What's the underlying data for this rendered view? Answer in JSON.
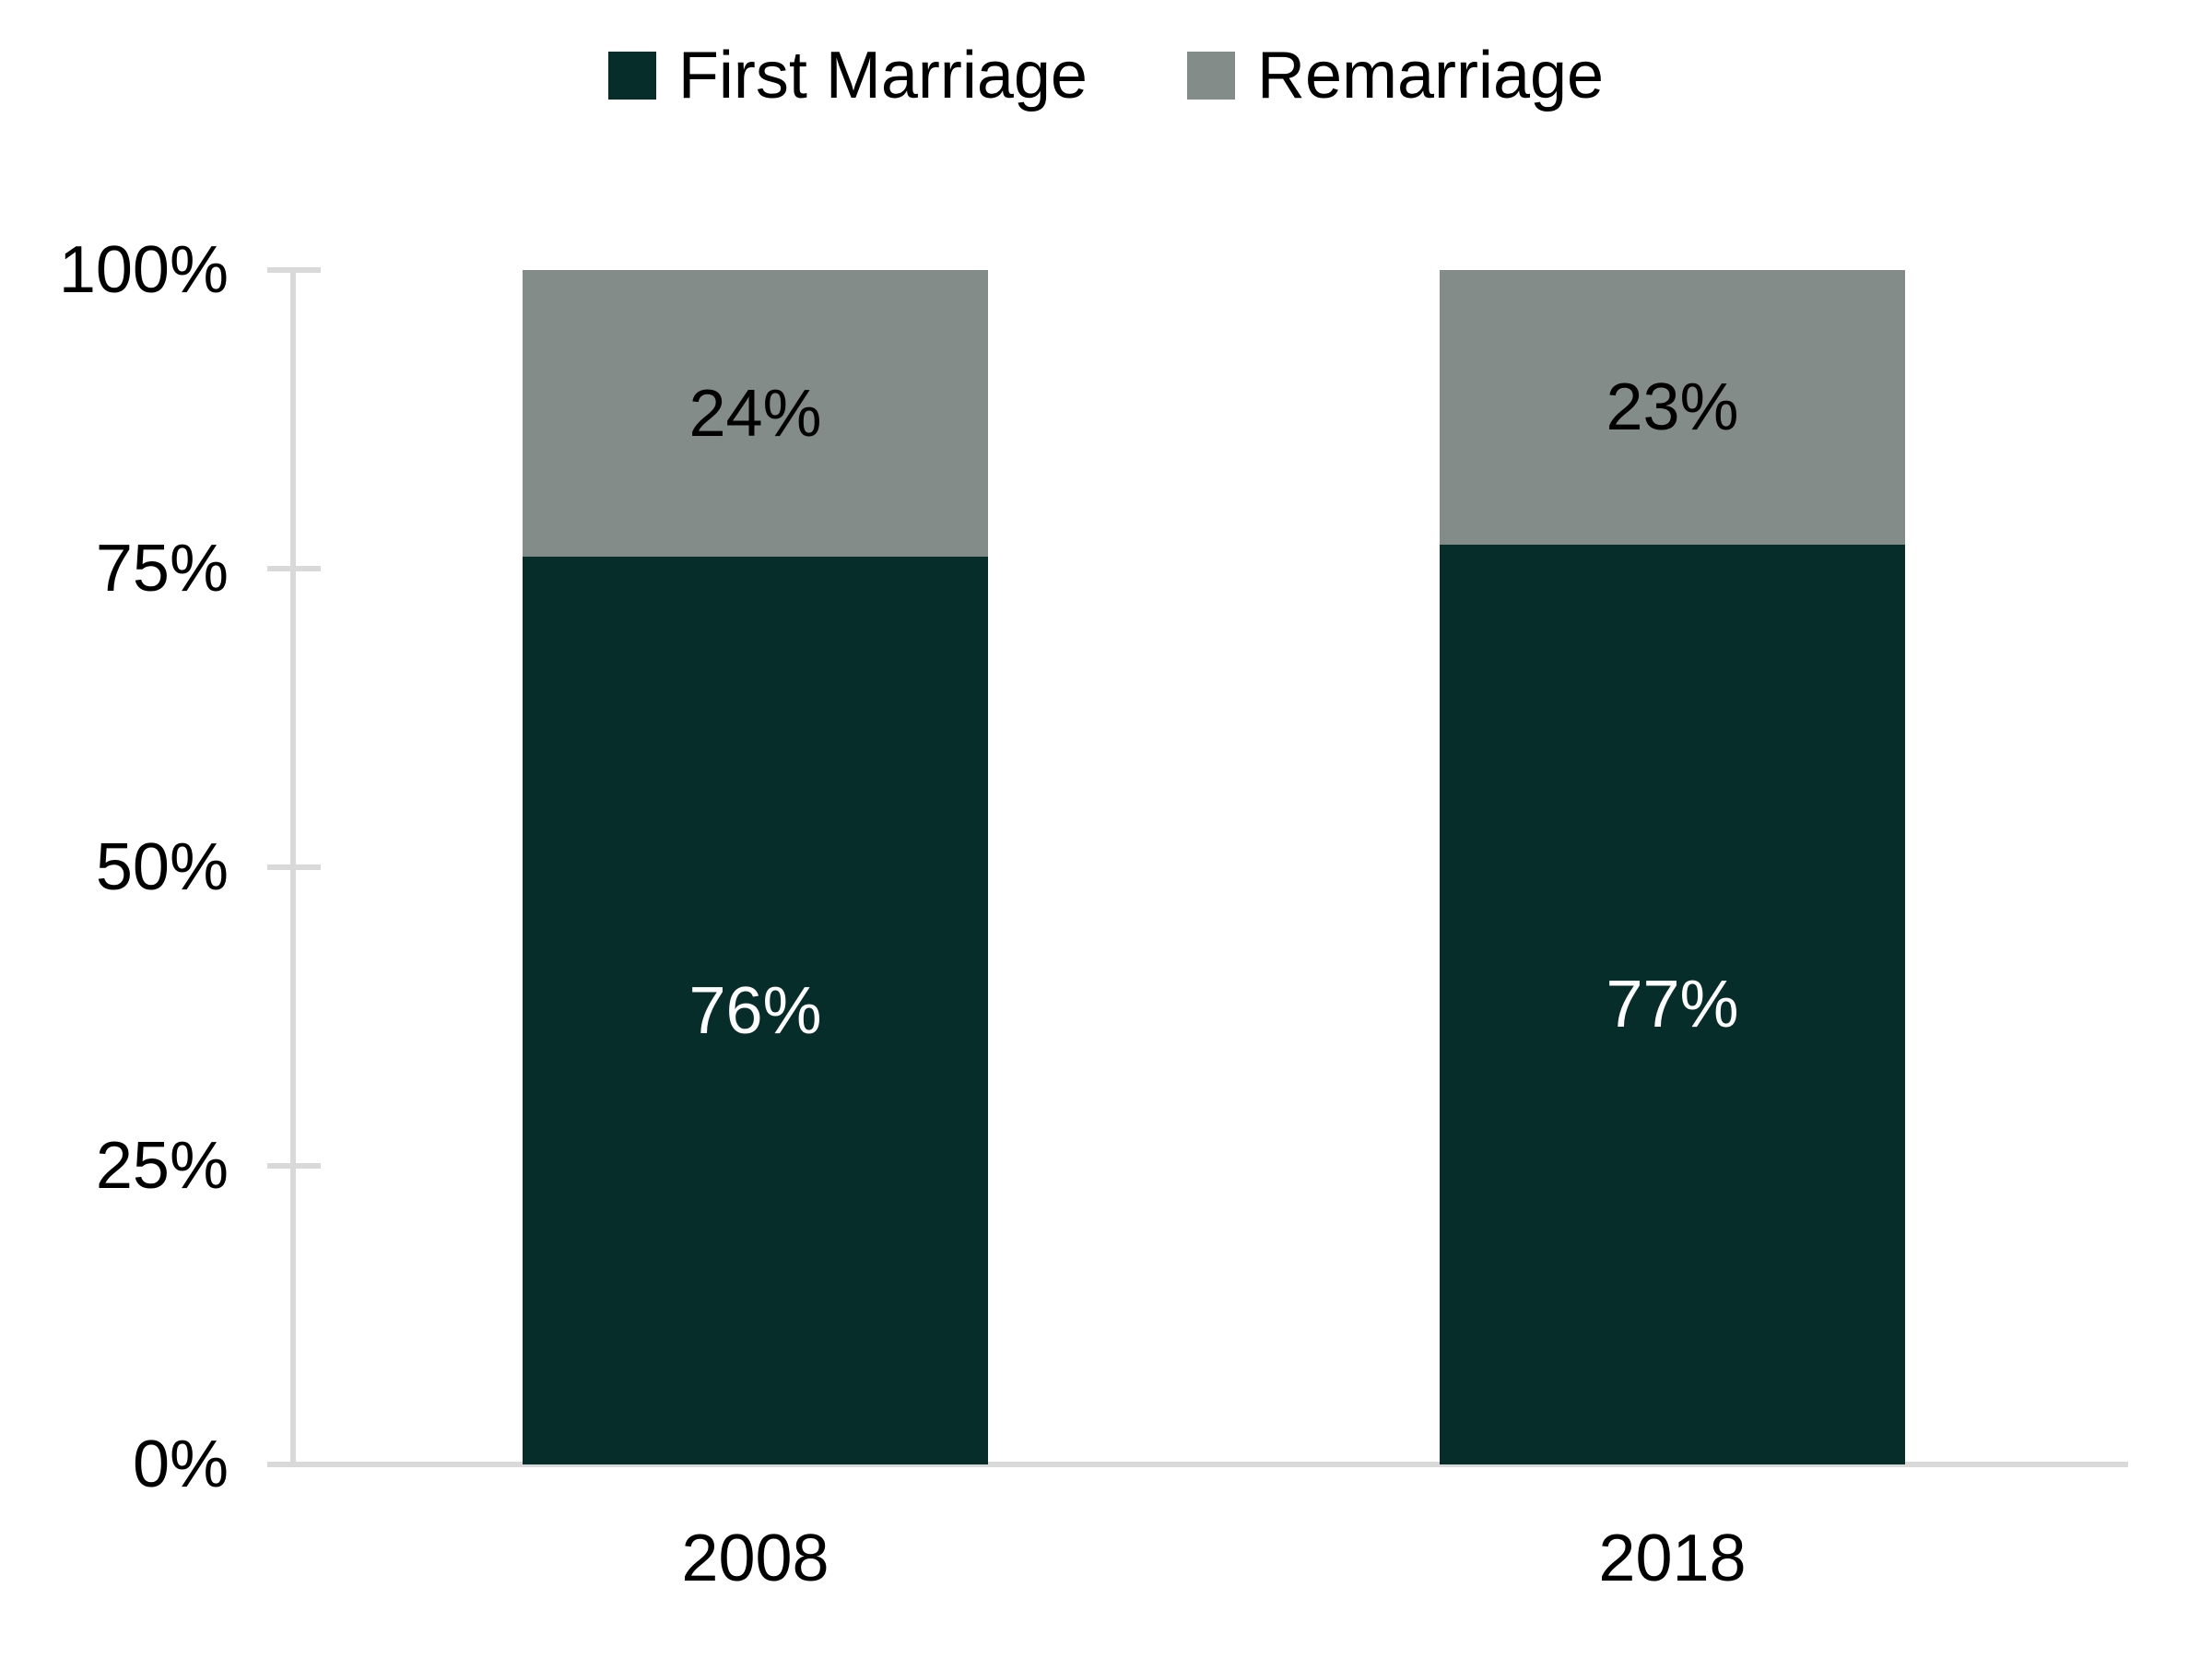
{
  "chart_data": {
    "type": "bar",
    "stacked": true,
    "percent_stacked": true,
    "title": "",
    "categories": [
      "2008",
      "2018"
    ],
    "series": [
      {
        "name": "First Marriage",
        "color": "#062d2a",
        "label_color": "#ffffff",
        "values": [
          76,
          77
        ],
        "labels": [
          "76%",
          "77%"
        ]
      },
      {
        "name": "Remarriage",
        "color": "#848c89",
        "label_color": "#000000",
        "values": [
          24,
          23
        ],
        "labels": [
          "24%",
          "23%"
        ]
      }
    ],
    "y_axis": {
      "min": 0,
      "max": 100,
      "tick_step": 25,
      "tick_labels": [
        "0%",
        "25%",
        "50%",
        "75%",
        "100%"
      ]
    },
    "legend_position": "top",
    "grid": false,
    "axis_color": "#d9d9d9",
    "text_color": "#000000",
    "background": "#ffffff"
  }
}
